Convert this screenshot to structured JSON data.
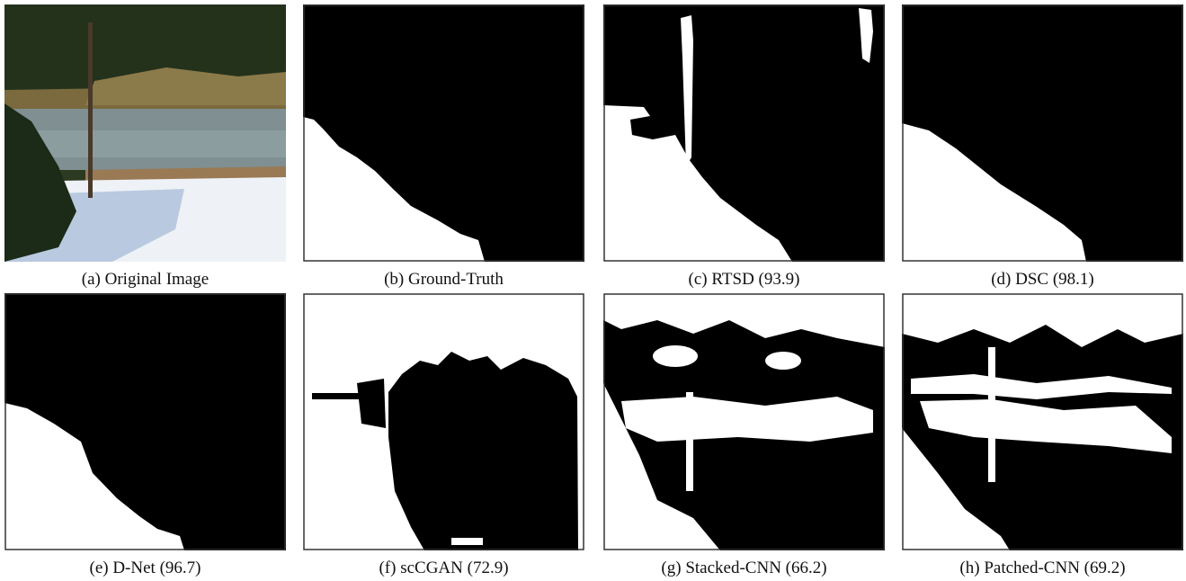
{
  "panels": [
    {
      "caption": "(a) Original Image"
    },
    {
      "caption": "(b) Ground-Truth"
    },
    {
      "caption": "(c) RTSD (93.9)"
    },
    {
      "caption": "(d) DSC (98.1)"
    },
    {
      "caption": "(e) D-Net (96.7)"
    },
    {
      "caption": "(f) scCGAN (72.9)"
    },
    {
      "caption": "(g) Stacked-CNN (66.2)"
    },
    {
      "caption": "(h) Patched-CNN (69.2)"
    }
  ]
}
